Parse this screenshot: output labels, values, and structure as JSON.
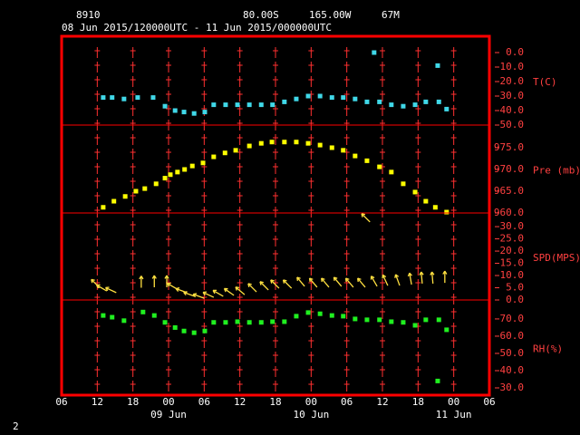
{
  "header": {
    "station": "8910",
    "lat": "80.00S",
    "lon": "165.00W",
    "elev": "67M",
    "period": "08 Jun 2015/120000UTC - 11 Jun 2015/000000UTC",
    "page": "2"
  },
  "chart_data": [
    {
      "type": "scatter",
      "label": "T(C)",
      "color": "#40d8e8",
      "x": [
        7.0,
        8.5,
        10.5,
        12.8,
        15.4,
        17.4,
        19.1,
        20.6,
        22.3,
        24.1,
        25.6,
        27.6,
        29.6,
        31.6,
        33.6,
        35.5,
        37.5,
        39.5,
        41.5,
        43.5,
        45.5,
        47.4,
        49.4,
        51.4,
        52.6,
        53.5,
        55.5,
        57.5,
        59.5,
        61.3,
        63.3,
        63.5,
        64.8
      ],
      "values": [
        -31,
        -31,
        -32,
        -31,
        -31,
        -37,
        -40,
        -41,
        -42,
        -41,
        -36,
        -36,
        -36,
        -36,
        -36,
        -36,
        -34,
        -32,
        -30,
        -30,
        -31,
        -31,
        -32,
        -34,
        0,
        -34,
        -36,
        -37,
        -36,
        -34,
        -9,
        -34,
        -39
      ],
      "ylim": [
        -50,
        11.25
      ],
      "yticks": [
        {
          "value": 0,
          "label": "0.0"
        },
        {
          "value": -10,
          "label": "-10.0"
        },
        {
          "value": -20,
          "label": "-20.0"
        },
        {
          "value": -30,
          "label": "-30.0"
        },
        {
          "value": -40,
          "label": "-40.0"
        },
        {
          "value": -50,
          "label": "-50.0"
        }
      ]
    },
    {
      "type": "scatter",
      "label": "Pre (mb)",
      "color": "#ffff00",
      "x": [
        7.0,
        8.8,
        10.7,
        12.5,
        14,
        15.9,
        17.4,
        18.3,
        19.5,
        20.7,
        22,
        23.8,
        25.6,
        27.5,
        29.3,
        31.6,
        33.6,
        35.4,
        37.5,
        39.5,
        41.5,
        43.5,
        45.5,
        47.4,
        49.4,
        51.4,
        53.5,
        55.5,
        57.5,
        59.5,
        61.3,
        62.9,
        64.8
      ],
      "values": [
        961.3,
        962.7,
        963.8,
        965,
        965.6,
        966.7,
        968,
        968.8,
        969.4,
        970,
        970.8,
        971.5,
        972.9,
        973.8,
        974.4,
        975.4,
        976,
        976.3,
        976.3,
        976.3,
        976,
        975.6,
        975,
        974.4,
        973.1,
        972,
        970.6,
        969.4,
        966.7,
        964.8,
        962.7,
        961.3,
        960.2
      ],
      "ylim": [
        960,
        980.2
      ],
      "yticks": [
        {
          "value": 975,
          "label": "975.0"
        },
        {
          "value": 970,
          "label": "970.0"
        },
        {
          "value": 965,
          "label": "965.0"
        },
        {
          "value": 960,
          "label": "960.0"
        }
      ]
    },
    {
      "type": "wind",
      "label": "SPD(MPS)",
      "color": "#ffe040",
      "x": [
        6.4,
        7.6,
        9.2,
        13.4,
        15.6,
        17.7,
        19.5,
        21.1,
        22.4,
        24,
        25.6,
        27.2,
        29,
        30.8,
        32.8,
        34.8,
        36.6,
        38.7,
        40.9,
        43,
        45,
        47.1,
        49.1,
        51.1,
        51.9,
        53.1,
        54.9,
        56.9,
        58.9,
        60.7,
        62.5,
        64.5
      ],
      "values": [
        5,
        3.7,
        3,
        5,
        5.2,
        5.2,
        4.4,
        3,
        1.5,
        0.7,
        1.1,
        1.5,
        1.9,
        2.2,
        3.3,
        4.1,
        4.8,
        4.8,
        5.6,
        5.2,
        5.2,
        5.6,
        5.2,
        5.2,
        31.9,
        5.6,
        5.9,
        5.9,
        6.3,
        6.7,
        6.7,
        7
      ],
      "directions": [
        315,
        300,
        295,
        0,
        0,
        0,
        300,
        290,
        290,
        290,
        295,
        300,
        305,
        310,
        315,
        315,
        315,
        315,
        320,
        320,
        320,
        320,
        320,
        320,
        315,
        330,
        335,
        340,
        350,
        355,
        355,
        0
      ],
      "ylim": [
        0,
        35.6
      ],
      "yticks": [
        {
          "value": 30,
          "label": "30.0"
        },
        {
          "value": 25,
          "label": "25.0"
        },
        {
          "value": 20,
          "label": "20.0"
        },
        {
          "value": 15,
          "label": "15.0"
        },
        {
          "value": 10,
          "label": "10.0"
        },
        {
          "value": 5,
          "label": "5.0"
        },
        {
          "value": 0,
          "label": "0.0"
        }
      ]
    },
    {
      "type": "scatter",
      "label": "RH(%)",
      "color": "#20f020",
      "x": [
        7.0,
        8.5,
        10.5,
        13.7,
        15.6,
        17.4,
        19.1,
        20.6,
        22.3,
        24.1,
        25.6,
        27.6,
        29.6,
        31.6,
        33.6,
        35.5,
        37.5,
        39.5,
        41.5,
        43.5,
        45.5,
        47.4,
        49.4,
        51.4,
        53.5,
        55.5,
        57.5,
        59.5,
        61.3,
        63.3,
        63.5,
        64.8
      ],
      "values": [
        72,
        71,
        69,
        74,
        72,
        68,
        65,
        63,
        62,
        63,
        68,
        68,
        68.4,
        68,
        68,
        68.4,
        68.4,
        71.6,
        73.7,
        73,
        72,
        71.6,
        70,
        69.5,
        69.5,
        68.4,
        68,
        66.3,
        69.5,
        34,
        69.5,
        63.7
      ],
      "ylim": [
        25.8,
        81
      ],
      "yticks": [
        {
          "value": 70,
          "label": "70.0"
        },
        {
          "value": 60,
          "label": "60.0"
        },
        {
          "value": 50,
          "label": "50.0"
        },
        {
          "value": 40,
          "label": "40.0"
        },
        {
          "value": 30,
          "label": "30.0"
        }
      ],
      "xlim": [
        0,
        72
      ],
      "xticks": [
        {
          "value": 0,
          "label": "06"
        },
        {
          "value": 6,
          "label": "12"
        },
        {
          "value": 12,
          "label": "18"
        },
        {
          "value": 18,
          "label": "00"
        },
        {
          "value": 24,
          "label": "06"
        },
        {
          "value": 30,
          "label": "12"
        },
        {
          "value": 36,
          "label": "18"
        },
        {
          "value": 42,
          "label": "00"
        },
        {
          "value": 48,
          "label": "06"
        },
        {
          "value": 54,
          "label": "12"
        },
        {
          "value": 60,
          "label": "18"
        },
        {
          "value": 66,
          "label": "00"
        },
        {
          "value": 72,
          "label": "06"
        }
      ],
      "date_labels": [
        {
          "value": 18,
          "label": "09 Jun"
        },
        {
          "value": 42,
          "label": "10 Jun"
        },
        {
          "value": 66,
          "label": "11 Jun"
        }
      ]
    }
  ]
}
